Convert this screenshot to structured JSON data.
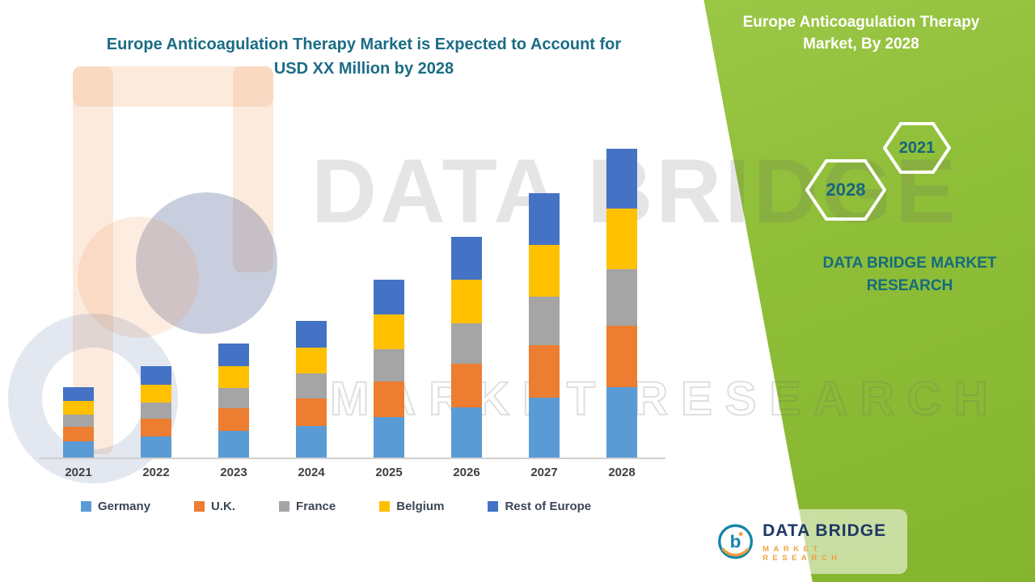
{
  "page": {
    "title_line1": "Europe Anticoagulation Therapy Market is Expected to Account for",
    "title_line2": "USD XX Million by 2028"
  },
  "side_panel": {
    "title_line1": "Europe Anticoagulation Therapy",
    "title_line2": "Market, By 2028",
    "hex_front_year": "2028",
    "hex_back_year": "2021",
    "caption_line1": "DATA BRIDGE MARKET",
    "caption_line2": "RESEARCH",
    "accent_green": "#8fbe38",
    "teal": "#156b80"
  },
  "watermark": {
    "line1": "DATA BRIDGE",
    "line2": "MARKET RESEARCH"
  },
  "logo": {
    "name": "DATA BRIDGE",
    "tagline": "MARKET RESEARCH"
  },
  "chart_data": {
    "type": "bar",
    "stacked": true,
    "title": "Europe Anticoagulation Therapy Market is Expected to Account for USD XX Million by 2028",
    "categories": [
      "2021",
      "2022",
      "2023",
      "2024",
      "2025",
      "2026",
      "2027",
      "2028"
    ],
    "series": [
      {
        "name": "Germany",
        "color": "#5b9bd5",
        "values": [
          20,
          26,
          33,
          39,
          50,
          62,
          74,
          87
        ]
      },
      {
        "name": "U.K.",
        "color": "#ed7d31",
        "values": [
          18,
          22,
          28,
          34,
          44,
          54,
          65,
          76
        ]
      },
      {
        "name": "France",
        "color": "#a5a5a5",
        "values": [
          15,
          20,
          25,
          31,
          40,
          50,
          60,
          70
        ]
      },
      {
        "name": "Belgium",
        "color": "#ffc000",
        "values": [
          17,
          22,
          27,
          32,
          43,
          54,
          64,
          75
        ]
      },
      {
        "name": "Rest of Europe",
        "color": "#4472c4",
        "values": [
          17,
          23,
          28,
          33,
          43,
          53,
          64,
          74
        ]
      }
    ],
    "totals": [
      87,
      113,
      141,
      169,
      220,
      273,
      327,
      382
    ],
    "xlabel": "",
    "ylabel": "",
    "ylim": [
      0,
      400
    ],
    "value_axis_visible": false,
    "value_labels_visible": false,
    "values_are_relative_estimates": true,
    "grid": false,
    "legend_position": "bottom"
  }
}
